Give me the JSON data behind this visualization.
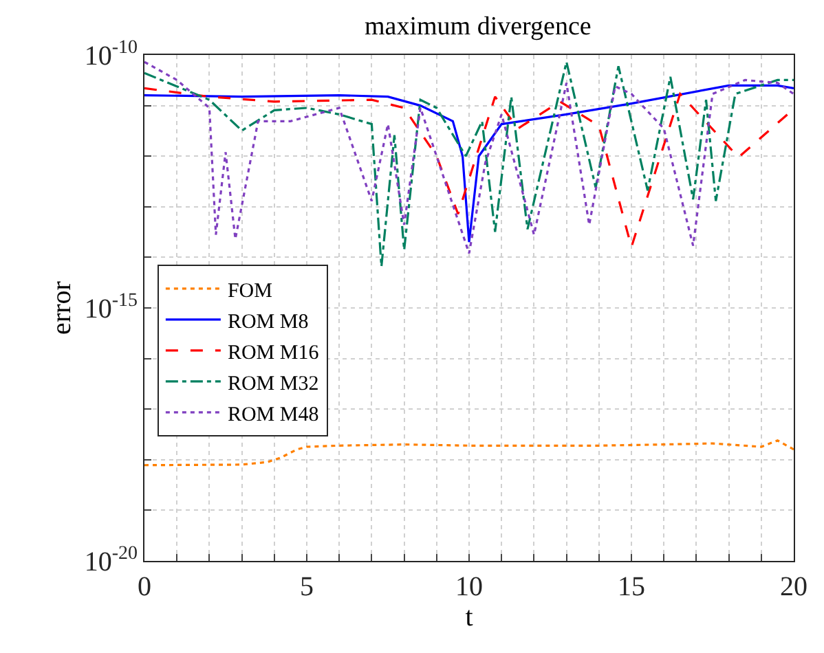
{
  "chart_data": {
    "type": "line",
    "title": "maximum divergence",
    "xlabel": "t",
    "ylabel": "error",
    "log": "y",
    "grid": true,
    "legend": "left",
    "xlim": [
      0,
      20
    ],
    "ylim": [
      1e-20,
      1e-10
    ],
    "xticks": [
      0,
      {
        "value": 1,
        "label": null
      },
      {
        "value": 2,
        "label": null
      },
      {
        "value": 3,
        "label": null
      },
      {
        "value": 4,
        "label": null
      },
      5,
      {
        "value": 6,
        "label": null
      },
      {
        "value": 7,
        "label": null
      },
      {
        "value": 8,
        "label": null
      },
      {
        "value": 9,
        "label": null
      },
      10,
      {
        "value": 11,
        "label": null
      },
      {
        "value": 12,
        "label": null
      },
      {
        "value": 13,
        "label": null
      },
      {
        "value": 14,
        "label": null
      },
      15,
      {
        "value": 16,
        "label": null
      },
      {
        "value": 17,
        "label": null
      },
      {
        "value": 18,
        "label": null
      },
      {
        "value": 19,
        "label": null
      },
      20
    ],
    "yticks": [
      {
        "value": 1e-20,
        "label": "10$^{-20}$"
      },
      {
        "value": 1e-19,
        "label": null
      },
      {
        "value": 1e-18,
        "label": null
      },
      {
        "value": 1e-17,
        "label": null
      },
      {
        "value": 1e-16,
        "label": null
      },
      {
        "value": 1e-15,
        "label": "10$^{-15}$"
      },
      {
        "value": 1e-14,
        "label": null
      },
      {
        "value": 1e-13,
        "label": null
      },
      {
        "value": 1e-12,
        "label": null
      },
      {
        "value": 1e-11,
        "label": null
      },
      {
        "value": 1e-10,
        "label": "10$^{-10}$"
      }
    ],
    "series": [
      {
        "name": "FOM",
        "color": "#ff8000",
        "line_style": "dotted",
        "x": [
          0,
          3,
          3.8,
          4.2,
          4.7,
          5,
          6,
          8,
          10,
          12,
          14,
          16,
          17.5,
          19,
          19.5,
          20
        ],
        "values": [
          7.8e-19,
          8e-19,
          9e-19,
          1.1e-18,
          1.6e-18,
          1.8e-18,
          1.9e-18,
          2e-18,
          1.9e-18,
          1.9e-18,
          1.9e-18,
          2e-18,
          2.1e-18,
          1.8e-18,
          2.4e-18,
          1.6e-18
        ]
      },
      {
        "name": "ROM M8",
        "color": "#0000ff",
        "line_style": "solid",
        "x": [
          0,
          3,
          6,
          7.5,
          8.5,
          9.5,
          9.8,
          10,
          10.3,
          11,
          13,
          15,
          18,
          19.5,
          20
        ],
        "values": [
          1.6e-11,
          1.5e-11,
          1.6e-11,
          1.5e-11,
          1e-11,
          4.9e-12,
          1e-12,
          2e-14,
          1e-12,
          4.3e-12,
          6.7e-12,
          1.1e-11,
          2.5e-11,
          2.5e-11,
          2.2e-11
        ]
      },
      {
        "name": "ROM M16",
        "color": "#ff0000",
        "line_style": "dashed",
        "x": [
          0,
          2,
          4,
          7,
          8,
          9,
          9.66,
          10.8,
          11.5,
          12.8,
          14,
          15,
          16.5,
          18.3,
          20
        ],
        "values": [
          2.2e-11,
          1.5e-11,
          1.2e-11,
          1.3e-11,
          9e-12,
          1e-12,
          7.2e-14,
          1.5e-11,
          3.5e-12,
          1.2e-11,
          4e-12,
          1.6e-14,
          1.7e-11,
          9.5e-13,
          8.6e-12
        ]
      },
      {
        "name": "ROM M32",
        "color": "#008060",
        "line_style": "dashdot",
        "x": [
          0,
          2,
          3,
          4,
          5,
          6,
          7,
          7.3,
          7.7,
          8,
          8.5,
          9,
          9.9,
          10.4,
          10.8,
          11.3,
          11.8,
          13,
          13.9,
          14.6,
          15.5,
          16.2,
          16.9,
          17.3,
          17.6,
          18.2,
          19.5,
          20
        ],
        "values": [
          4.4e-11,
          1.3e-11,
          3.2e-12,
          8.1e-12,
          9e-12,
          6.7e-12,
          4.3e-12,
          6.6e-15,
          2.6e-12,
          1.4e-14,
          1.3e-11,
          9e-12,
          1e-12,
          4.9e-12,
          3.2e-14,
          1.5e-11,
          3.6e-14,
          7.3e-11,
          2.4e-13,
          6e-11,
          2.1e-13,
          3.7e-11,
          1.4e-13,
          1.3e-11,
          1.3e-13,
          1.7e-11,
          3.2e-11,
          3.2e-11
        ]
      },
      {
        "name": "ROM M48",
        "color": "#8040c0",
        "line_style": "dotted",
        "x": [
          0,
          1,
          2,
          2.2,
          2.5,
          2.8,
          3.5,
          4.5,
          6,
          7,
          7.5,
          8,
          8.5,
          10,
          10.5,
          11,
          12,
          13,
          13.7,
          14.5,
          15,
          16,
          16.9,
          17.5,
          18.5,
          19.5,
          20
        ],
        "values": [
          7.3e-11,
          3.2e-11,
          9e-12,
          2.8e-14,
          1.2e-12,
          2.3e-14,
          4.9e-12,
          4.9e-12,
          9e-12,
          1.3e-13,
          4.3e-12,
          4.4e-14,
          9e-12,
          1.2e-14,
          7.4e-13,
          6.7e-12,
          2.8e-14,
          2.8e-11,
          4.4e-14,
          2.4e-11,
          1.7e-11,
          3.5e-12,
          1.7e-14,
          1.7e-11,
          3.2e-11,
          2.8e-11,
          1.7e-11
        ]
      }
    ]
  }
}
